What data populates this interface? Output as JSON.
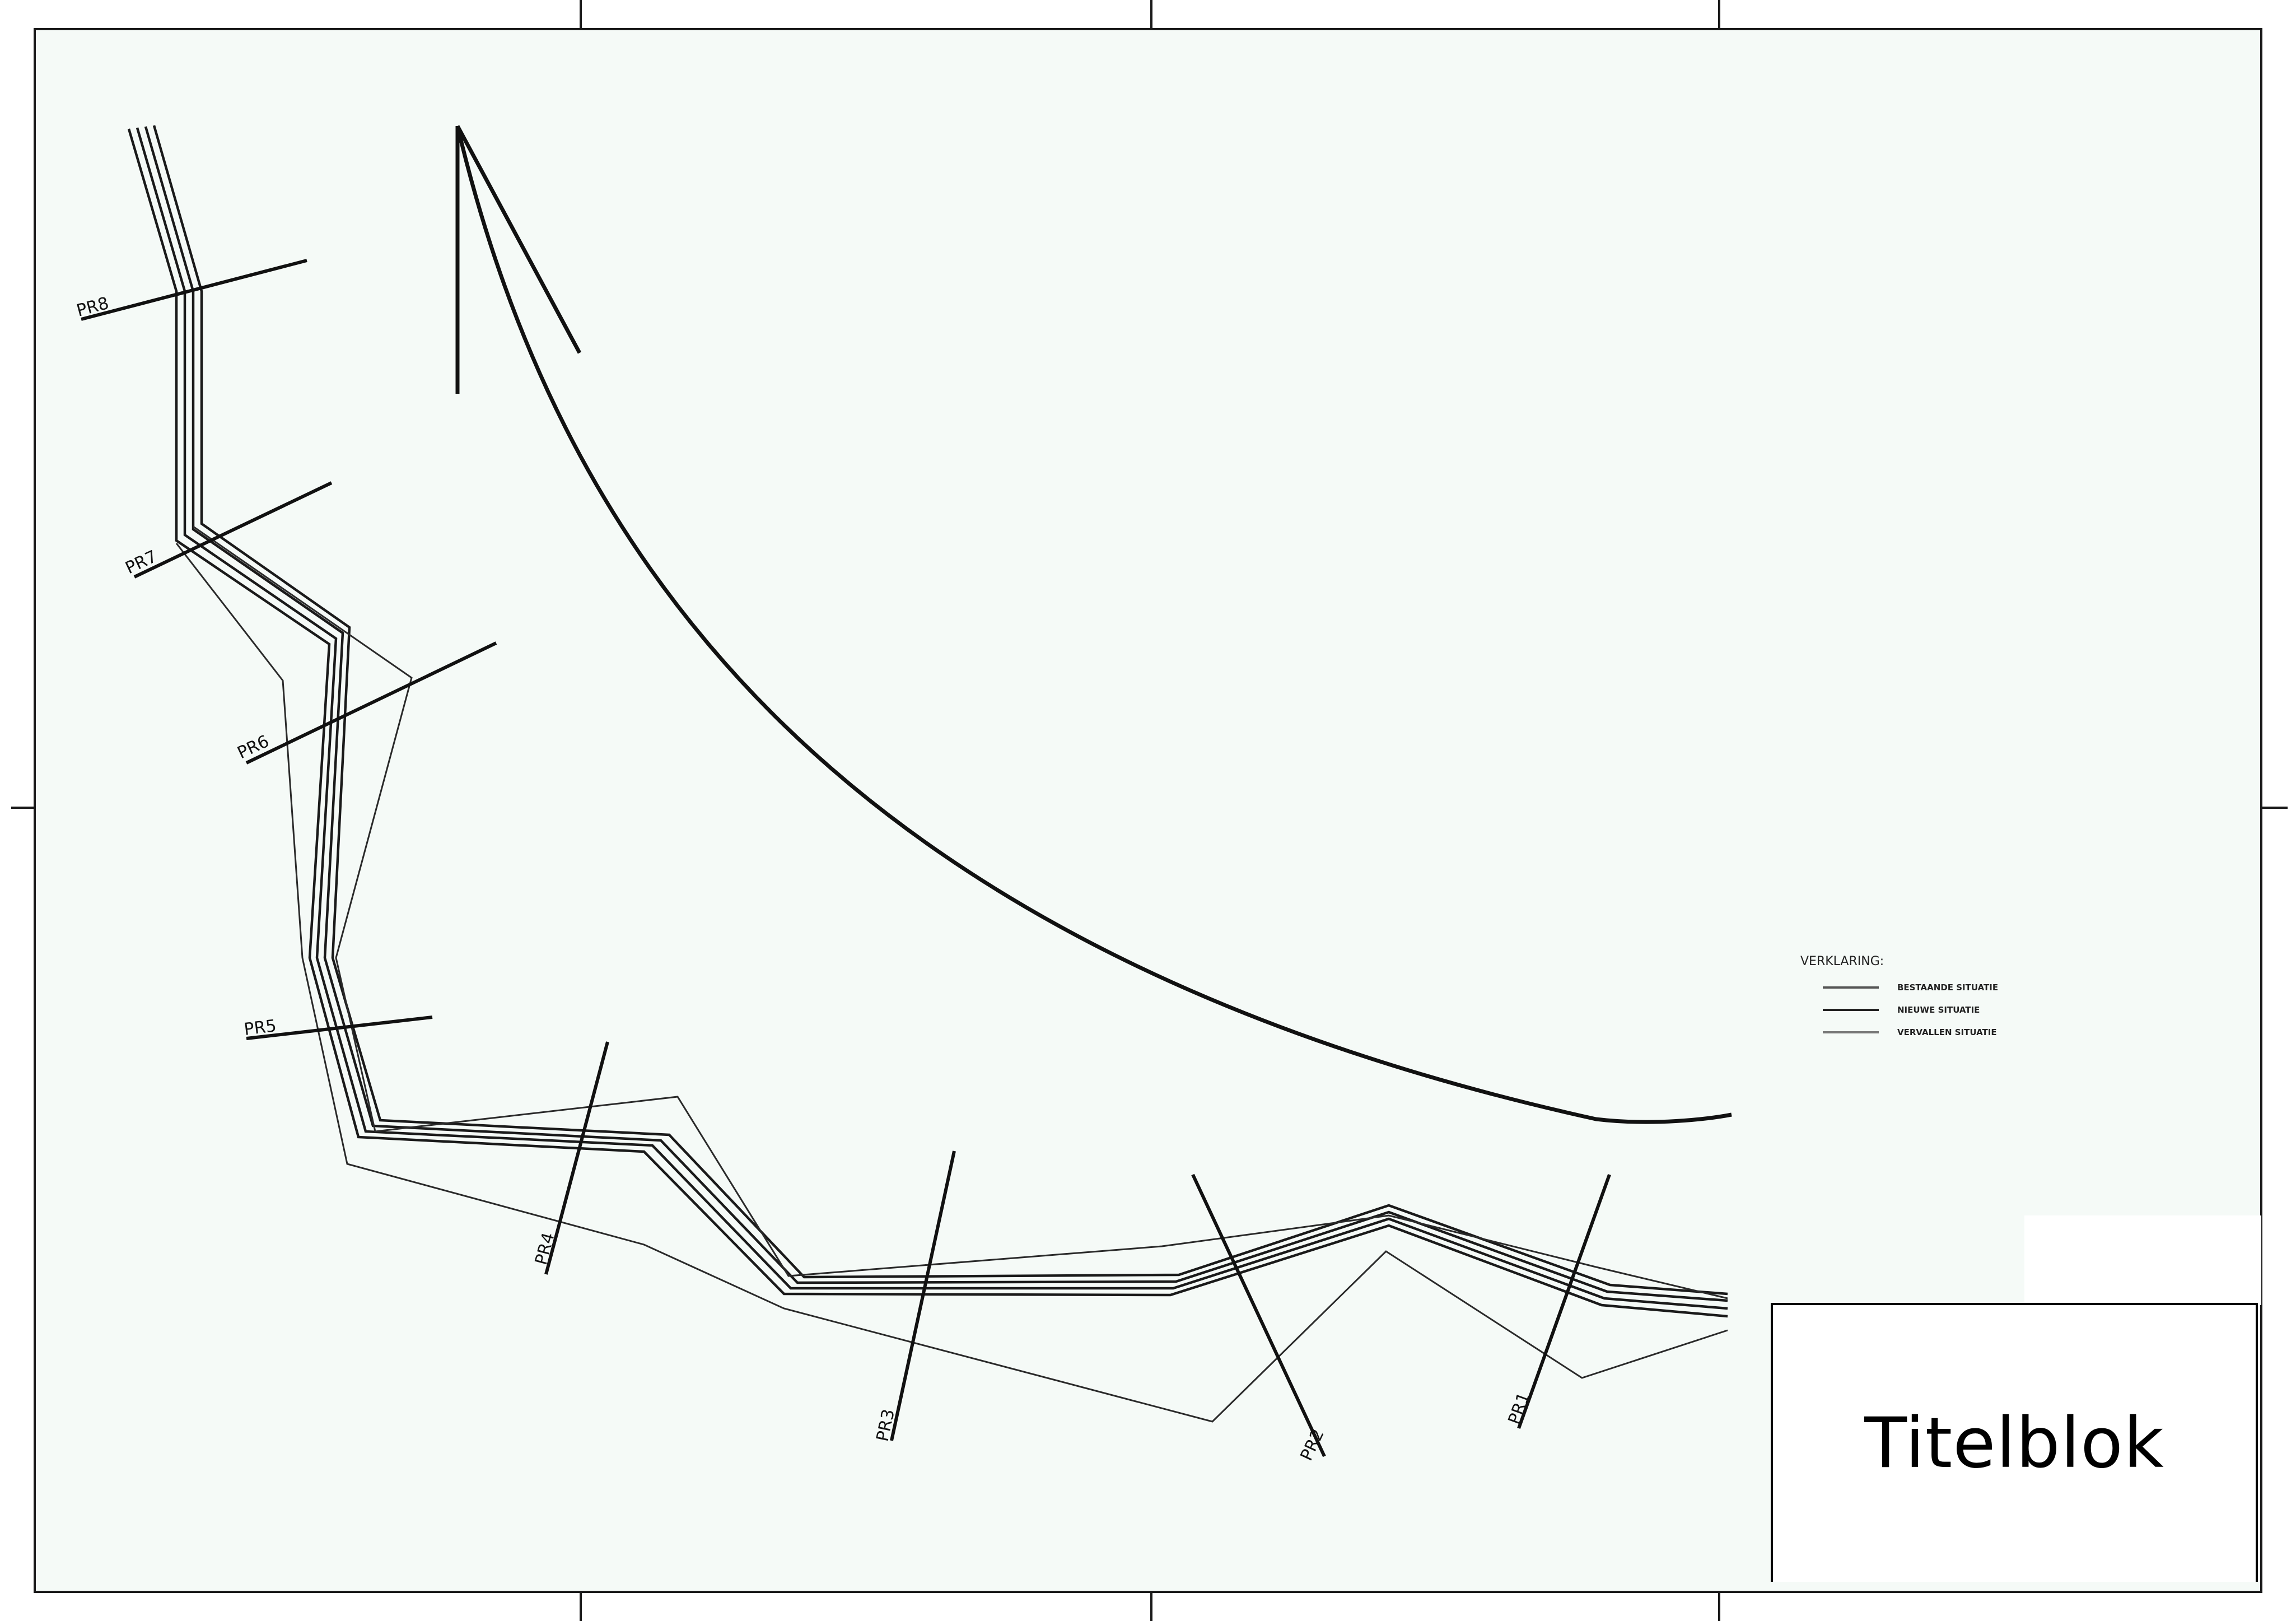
{
  "drawing": {
    "background_color": "#f5faf7",
    "line_color": "#1a1a1a"
  },
  "profiles": [
    "PR8",
    "PR7",
    "PR6",
    "PR5",
    "PR4",
    "PR3",
    "PR2",
    "PR1"
  ],
  "legend": {
    "title": "VERKLARING:",
    "items": [
      {
        "label": "BESTAANDE SITUATIE",
        "color": "#555555"
      },
      {
        "label": "NIEUWE SITUATIE",
        "color": "#222222"
      },
      {
        "label": "VERVALLEN SITUATIE",
        "color": "#777777"
      }
    ]
  },
  "titelblok": {
    "label": "Titelblok"
  }
}
